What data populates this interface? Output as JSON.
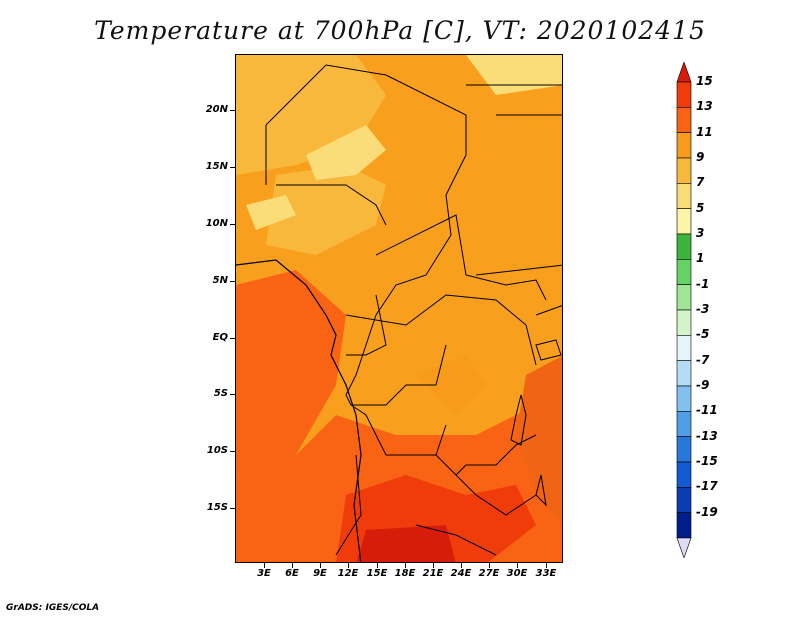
{
  "title": "Temperature at 700hPa [C], VT: 2020102415",
  "credit": "GrADS: IGES/COLA",
  "map": {
    "lat_labels": [
      "20N",
      "15N",
      "10N",
      "5N",
      "EQ",
      "5S",
      "10S",
      "15S"
    ],
    "lon_labels": [
      "3E",
      "6E",
      "9E",
      "12E",
      "15E",
      "18E",
      "21E",
      "24E",
      "27E",
      "30E",
      "33E"
    ]
  },
  "colorbar": {
    "labels": [
      "15",
      "13",
      "11",
      "9",
      "7",
      "5",
      "3",
      "1",
      "-1",
      "-3",
      "-5",
      "-7",
      "-9",
      "-11",
      "-13",
      "-15",
      "-17",
      "-19"
    ],
    "colors": [
      "#d81c0a",
      "#f03c0a",
      "#f86414",
      "#f89a1a",
      "#f8b83c",
      "#fadc78",
      "#fcf4a8",
      "#3cb43c",
      "#64d264",
      "#a0e696",
      "#d2f4c8",
      "#e6f4fa",
      "#b4dcf4",
      "#82c0f0",
      "#509ee6",
      "#2878dc",
      "#145ad2",
      "#0a3cb4",
      "#001e8c",
      "#dcdcf4"
    ]
  },
  "colors": {
    "warm_base": "#f8a01e",
    "warm_hot": "#f06414",
    "warm_cool": "#fcc864",
    "hottest": "#d22a0a"
  }
}
